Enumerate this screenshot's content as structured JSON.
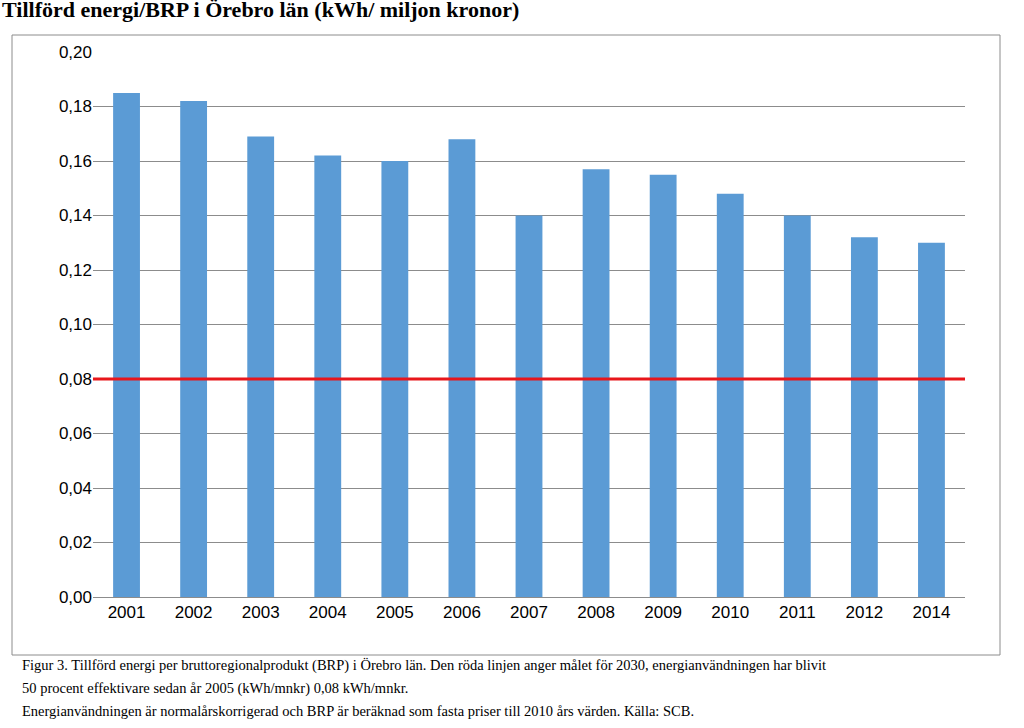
{
  "chart_data": {
    "type": "bar",
    "title": "Tillförd energi/BRP i Örebro län (kWh/ miljon kronor)",
    "categories": [
      "2001",
      "2002",
      "2003",
      "2004",
      "2005",
      "2006",
      "2007",
      "2008",
      "2009",
      "2010",
      "2011",
      "2012",
      "2014"
    ],
    "values": [
      0.185,
      0.182,
      0.169,
      0.162,
      0.16,
      0.168,
      0.14,
      0.157,
      0.155,
      0.148,
      0.14,
      0.132,
      0.13
    ],
    "color": "#5b9bd5",
    "target_line": {
      "value": 0.08,
      "color": "#e8161b"
    },
    "ylim": [
      0,
      0.2
    ],
    "yticks": [
      {
        "value": 0,
        "label": "0,00"
      },
      {
        "value": 0.02,
        "label": "0,02"
      },
      {
        "value": 0.04,
        "label": "0,04"
      },
      {
        "value": 0.06,
        "label": "0,06"
      },
      {
        "value": 0.08,
        "label": "0,08"
      },
      {
        "value": 0.1,
        "label": "0,10"
      },
      {
        "value": 0.12,
        "label": "0,12"
      },
      {
        "value": 0.14,
        "label": "0,14"
      },
      {
        "value": 0.16,
        "label": "0,16"
      },
      {
        "value": 0.18,
        "label": "0,18"
      },
      {
        "value": 0.2,
        "label": "0,20"
      }
    ],
    "grid": true,
    "annotations": [
      "Figur 3. Tillförd energi per bruttoregionalprodukt (BRP) i Örebro län. Den röda linjen anger målet för 2030, energianvändningen har blivit",
      "50 procent effektivare sedan år 2005 (kWh/mnkr) 0,08 kWh/mnkr.",
      "Energianvändningen är normalårskorrigerad och BRP är beräknad som fasta priser till 2010 års värden. Källa: SCB."
    ]
  }
}
